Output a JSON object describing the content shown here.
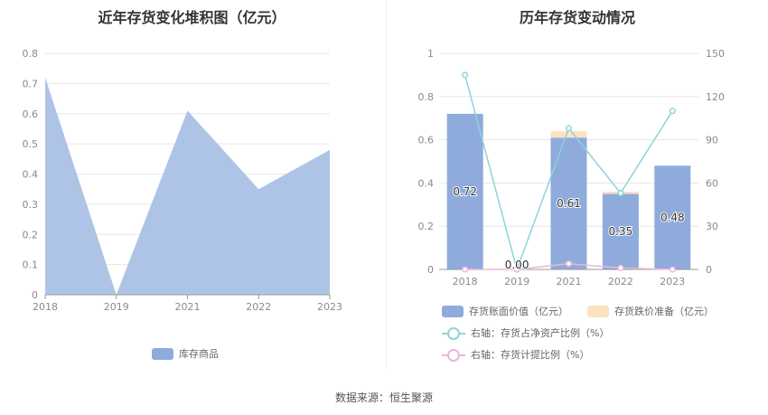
{
  "source": "数据来源：恒生聚源",
  "colors": {
    "area": "#aec4e6",
    "bar_book": "#8eabdc",
    "bar_provision": "#fbe3bf",
    "line_ratio": "#8dd3d9",
    "line_provision": "#e9b7d6",
    "grid": "#e6e6e6"
  },
  "chart_data": [
    {
      "type": "area",
      "title": "近年存货变化堆积图（亿元）",
      "categories": [
        "2018",
        "2019",
        "2021",
        "2022",
        "2023"
      ],
      "yticks": [
        "0",
        "0.1",
        "0.2",
        "0.3",
        "0.4",
        "0.5",
        "0.6",
        "0.7",
        "0.8"
      ],
      "ylim": [
        0,
        0.8
      ],
      "series": [
        {
          "name": "库存商品",
          "values": [
            0.72,
            0.0,
            0.61,
            0.35,
            0.48
          ]
        }
      ],
      "legend_position": "bottom"
    },
    {
      "type": "bar",
      "title": "历年存货变动情况",
      "categories": [
        "2018",
        "2019",
        "2021",
        "2022",
        "2023"
      ],
      "yticks_left": [
        "0",
        "0.2",
        "0.4",
        "0.6",
        "0.8",
        "1"
      ],
      "ylim_left": [
        0,
        1
      ],
      "yticks_right": [
        "0",
        "30",
        "60",
        "90",
        "120",
        "150"
      ],
      "ylim_right": [
        0,
        150
      ],
      "series": [
        {
          "name": "存货账面价值（亿元）",
          "values": [
            0.72,
            0.0,
            0.61,
            0.35,
            0.48
          ],
          "labels": [
            "0.72",
            "0.00",
            "0.61",
            "0.35",
            "0.48"
          ]
        },
        {
          "name": "存货跌价准备（亿元）",
          "values": [
            0.0,
            0.0,
            0.03,
            0.01,
            0.0
          ]
        },
        {
          "name": "右轴：存货占净资产比例（%）",
          "values": [
            135,
            0,
            98,
            53,
            110
          ]
        },
        {
          "name": "右轴：存货计提比例（%）",
          "values": [
            0,
            0,
            4,
            1,
            0
          ]
        }
      ],
      "legend_position": "bottom"
    }
  ]
}
